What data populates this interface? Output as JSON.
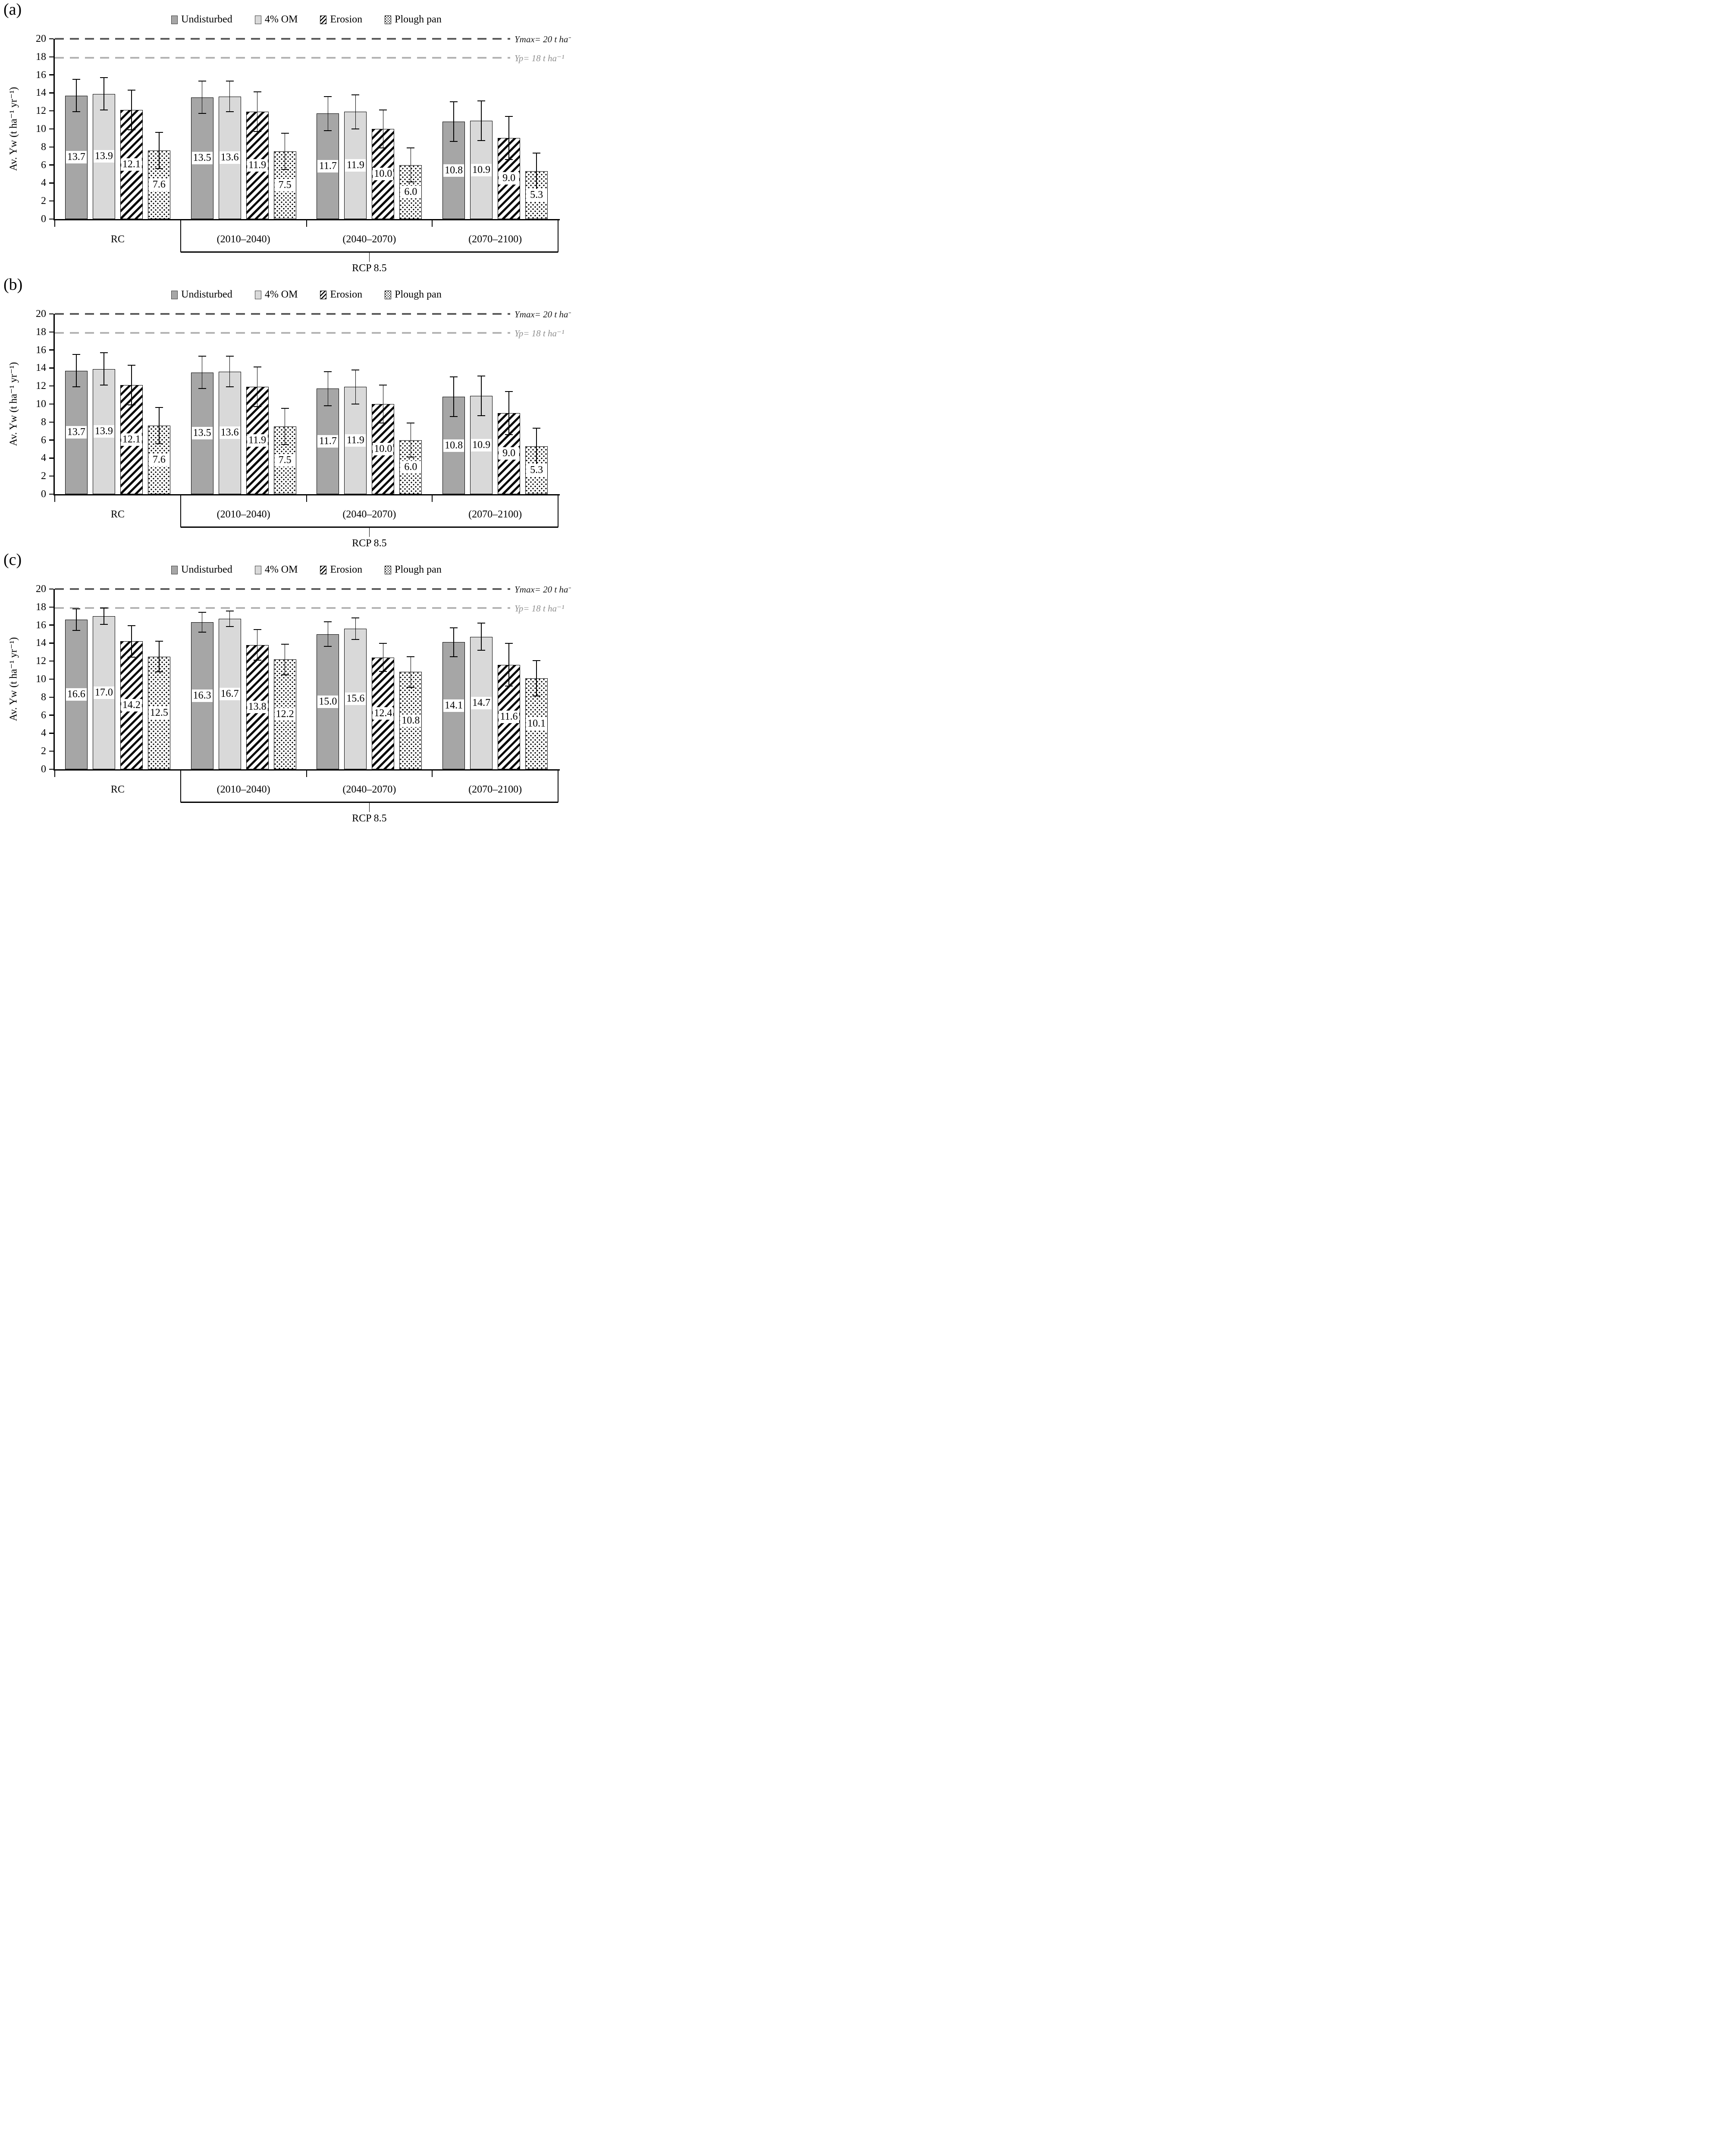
{
  "figure": {
    "panel_letters": [
      "(a)",
      "(b)",
      "(c)"
    ],
    "y_axis_title": "Av. Yw (t ha⁻¹ yr⁻¹)",
    "colors": {
      "undisturbed_fill": "#a6a6a6",
      "om_fill": "#d9d9d9",
      "ymax_line": "#595959",
      "yp_line": "#b3b3b3",
      "ymax_text": "#1a1a1a",
      "yp_text": "#909090"
    }
  },
  "chart_data": [
    {
      "type": "bar",
      "title": "(a)",
      "ylabel": "Av. Yw (t ha⁻¹ yr⁻¹)",
      "ylim": [
        0,
        20
      ],
      "ytick_step": 2,
      "grid": false,
      "legend_position": "top",
      "categories": [
        "RC",
        "(2010–2040)",
        "(2040–2070)",
        "(2070–2100)"
      ],
      "group_bracket": {
        "label": "RCP 8.5",
        "from": 1,
        "to": 3
      },
      "series": [
        {
          "name": "Undisturbed",
          "pattern": "solid",
          "color": "#a6a6a6",
          "values": [
            13.7,
            13.5,
            11.7,
            10.8
          ],
          "errors": [
            1.8,
            1.8,
            1.9,
            2.2
          ]
        },
        {
          "name": "4% OM",
          "pattern": "solid",
          "color": "#d9d9d9",
          "values": [
            13.9,
            13.6,
            11.9,
            10.9
          ],
          "errors": [
            1.8,
            1.7,
            1.9,
            2.2
          ]
        },
        {
          "name": "Erosion",
          "pattern": "hatch",
          "color": "#000000",
          "values": [
            12.1,
            11.9,
            10.0,
            9.0
          ],
          "errors": [
            2.2,
            2.2,
            2.1,
            2.4
          ]
        },
        {
          "name": "Plough pan",
          "pattern": "dots",
          "color": "#000000",
          "values": [
            7.6,
            7.5,
            6.0,
            5.3
          ],
          "errors": [
            2.0,
            2.0,
            1.9,
            2.0
          ]
        }
      ],
      "ref_lines": [
        {
          "label": "Ymax= 20 t ha⁻¹",
          "value": 20,
          "line_color": "#595959",
          "text_color": "#1a1a1a"
        },
        {
          "label": "Yp= 18 t ha⁻¹",
          "value": 17.9,
          "line_color": "#b3b3b3",
          "text_color": "#909090"
        }
      ]
    },
    {
      "type": "bar",
      "title": "(b)",
      "ylabel": "Av. Yw (t ha⁻¹ yr⁻¹)",
      "ylim": [
        0,
        20
      ],
      "ytick_step": 2,
      "grid": false,
      "legend_position": "top",
      "categories": [
        "RC",
        "(2010–2040)",
        "(2040–2070)",
        "(2070–2100)"
      ],
      "group_bracket": {
        "label": "RCP 8.5",
        "from": 1,
        "to": 3
      },
      "series": [
        {
          "name": "Undisturbed",
          "pattern": "solid",
          "color": "#a6a6a6",
          "values": [
            13.7,
            13.5,
            11.7,
            10.8
          ],
          "errors": [
            1.8,
            1.8,
            1.9,
            2.2
          ]
        },
        {
          "name": "4% OM",
          "pattern": "solid",
          "color": "#d9d9d9",
          "values": [
            13.9,
            13.6,
            11.9,
            10.9
          ],
          "errors": [
            1.8,
            1.7,
            1.9,
            2.2
          ]
        },
        {
          "name": "Erosion",
          "pattern": "hatch",
          "color": "#000000",
          "values": [
            12.1,
            11.9,
            10.0,
            9.0
          ],
          "errors": [
            2.2,
            2.2,
            2.1,
            2.4
          ]
        },
        {
          "name": "Plough pan",
          "pattern": "dots",
          "color": "#000000",
          "values": [
            7.6,
            7.5,
            6.0,
            5.3
          ],
          "errors": [
            2.0,
            2.0,
            1.9,
            2.0
          ]
        }
      ],
      "ref_lines": [
        {
          "label": "Ymax= 20 t ha⁻¹",
          "value": 20,
          "line_color": "#595959",
          "text_color": "#1a1a1a"
        },
        {
          "label": "Yp= 18 t ha⁻¹",
          "value": 17.9,
          "line_color": "#b3b3b3",
          "text_color": "#909090"
        }
      ]
    },
    {
      "type": "bar",
      "title": "(c)",
      "ylabel": "Av. Yw (t ha⁻¹ yr⁻¹)",
      "ylim": [
        0,
        20
      ],
      "ytick_step": 2,
      "grid": false,
      "legend_position": "top",
      "categories": [
        "RC",
        "(2010–2040)",
        "(2040–2070)",
        "(2070–2100)"
      ],
      "group_bracket": {
        "label": "RCP 8.5",
        "from": 1,
        "to": 3
      },
      "series": [
        {
          "name": "Undisturbed",
          "pattern": "solid",
          "color": "#a6a6a6",
          "values": [
            16.6,
            16.3,
            15.0,
            14.1
          ],
          "errors": [
            1.2,
            1.1,
            1.35,
            1.6
          ]
        },
        {
          "name": "4% OM",
          "pattern": "solid",
          "color": "#d9d9d9",
          "values": [
            17.0,
            16.7,
            15.6,
            14.7
          ],
          "errors": [
            0.9,
            0.85,
            1.2,
            1.5
          ]
        },
        {
          "name": "Erosion",
          "pattern": "hatch",
          "color": "#000000",
          "values": [
            14.2,
            13.8,
            12.4,
            11.6
          ],
          "errors": [
            1.75,
            1.7,
            1.55,
            2.35
          ]
        },
        {
          "name": "Plough pan",
          "pattern": "dots",
          "color": "#000000",
          "values": [
            12.5,
            12.2,
            10.8,
            10.1
          ],
          "errors": [
            1.7,
            1.7,
            1.7,
            1.95
          ]
        }
      ],
      "ref_lines": [
        {
          "label": "Ymax= 20 t ha⁻¹",
          "value": 20,
          "line_color": "#595959",
          "text_color": "#1a1a1a"
        },
        {
          "label": "Yp= 18 t ha⁻¹",
          "value": 17.9,
          "line_color": "#b3b3b3",
          "text_color": "#909090"
        }
      ]
    }
  ]
}
